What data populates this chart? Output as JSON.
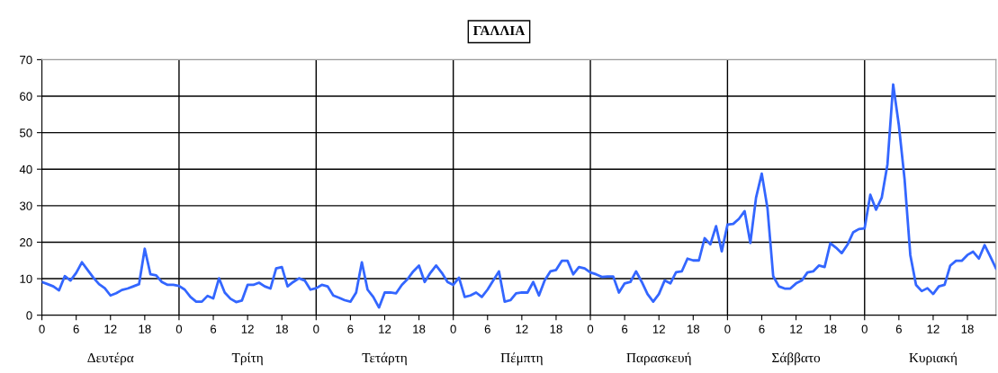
{
  "chart_data": {
    "type": "line",
    "title": "ΓΑΛΛΙΑ",
    "categories": [
      "0",
      null,
      null,
      null,
      null,
      null,
      "6",
      null,
      null,
      null,
      null,
      null,
      "12",
      null,
      null,
      null,
      null,
      null,
      "18",
      null,
      null,
      null,
      null,
      null,
      "0",
      null,
      null,
      null,
      null,
      null,
      "6",
      null,
      null,
      null,
      null,
      null,
      "12",
      null,
      null,
      null,
      null,
      null,
      "18",
      null,
      null,
      null,
      null,
      null,
      "0",
      null,
      null,
      null,
      null,
      null,
      "6",
      null,
      null,
      null,
      null,
      null,
      "12",
      null,
      null,
      null,
      null,
      null,
      "18",
      null,
      null,
      null,
      null,
      null,
      "0",
      null,
      null,
      null,
      null,
      null,
      "6",
      null,
      null,
      null,
      null,
      null,
      "12",
      null,
      null,
      null,
      null,
      null,
      "18",
      null,
      null,
      null,
      null,
      null,
      "0",
      null,
      null,
      null,
      null,
      null,
      "6",
      null,
      null,
      null,
      null,
      null,
      "12",
      null,
      null,
      null,
      null,
      null,
      "18",
      null,
      null,
      null,
      null,
      null,
      "0",
      null,
      null,
      null,
      null,
      null,
      "6",
      null,
      null,
      null,
      null,
      null,
      "12",
      null,
      null,
      null,
      null,
      null,
      "18",
      null,
      null,
      null,
      null,
      null,
      "0",
      null,
      null,
      null,
      null,
      null,
      "6",
      null,
      null,
      null,
      null,
      null,
      "12",
      null,
      null,
      null,
      null,
      null,
      "18",
      null,
      null,
      null,
      null,
      null
    ],
    "series": [
      {
        "color": "#3366ff",
        "values": [
          9.1,
          8.5,
          7.9,
          6.8,
          10.7,
          9.5,
          11.6,
          14.5,
          12.4,
          10.3,
          8.5,
          7.4,
          5.4,
          6.0,
          6.9,
          7.3,
          7.9,
          8.5,
          18.2,
          11.2,
          10.9,
          9.1,
          8.3,
          8.3,
          8.0,
          7.0,
          5.0,
          3.7,
          3.7,
          5.3,
          4.6,
          10.1,
          6.2,
          4.5,
          3.6,
          4.0,
          8.3,
          8.3,
          8.9,
          7.9,
          7.3,
          12.8,
          13.2,
          7.9,
          9.1,
          10.1,
          9.5,
          7.0,
          7.4,
          8.3,
          7.9,
          5.4,
          4.8,
          4.1,
          3.7,
          6.2,
          14.5,
          7.0,
          5.0,
          2.1,
          6.2,
          6.2,
          6.0,
          8.3,
          9.9,
          12.0,
          13.6,
          9.1,
          11.6,
          13.6,
          11.6,
          9.1,
          8.3,
          10.3,
          5.0,
          5.4,
          6.2,
          5.0,
          7.0,
          9.5,
          12.0,
          3.7,
          4.1,
          6.0,
          6.2,
          6.2,
          9.1,
          5.4,
          9.5,
          12.0,
          12.4,
          14.9,
          14.9,
          11.2,
          13.2,
          12.8,
          11.7,
          11.2,
          10.5,
          10.6,
          10.6,
          6.2,
          8.7,
          9.1,
          12.0,
          9.1,
          5.8,
          3.7,
          5.8,
          9.5,
          8.7,
          11.8,
          12.0,
          15.5,
          15.0,
          15.0,
          21.1,
          19.4,
          24.4,
          17.5,
          24.8,
          25.0,
          26.4,
          28.5,
          19.8,
          32.2,
          38.8,
          29.3,
          10.7,
          7.9,
          7.3,
          7.3,
          8.7,
          9.5,
          11.7,
          12.0,
          13.6,
          13.2,
          19.7,
          18.5,
          17.0,
          19.3,
          22.7,
          23.6,
          23.8,
          33.0,
          28.9,
          32.2,
          41.3,
          63.2,
          52.0,
          37.2,
          16.5,
          8.3,
          6.6,
          7.4,
          5.8,
          7.9,
          8.3,
          13.6,
          14.9,
          14.9,
          16.5,
          17.4,
          15.5,
          19.2,
          16.1,
          12.8
        ]
      }
    ],
    "annotations": [
      "Δευτέρα",
      "Τρίτη",
      "Τετάρτη",
      "Πέμπτη",
      "Παρασκευή",
      "Σάββατο",
      "Κυριακή"
    ],
    "ylim": [
      0,
      70
    ],
    "yticks": [
      0,
      10,
      20,
      30,
      40,
      50,
      60,
      70
    ],
    "grid": true,
    "marker": "none",
    "line_style": "solid"
  }
}
